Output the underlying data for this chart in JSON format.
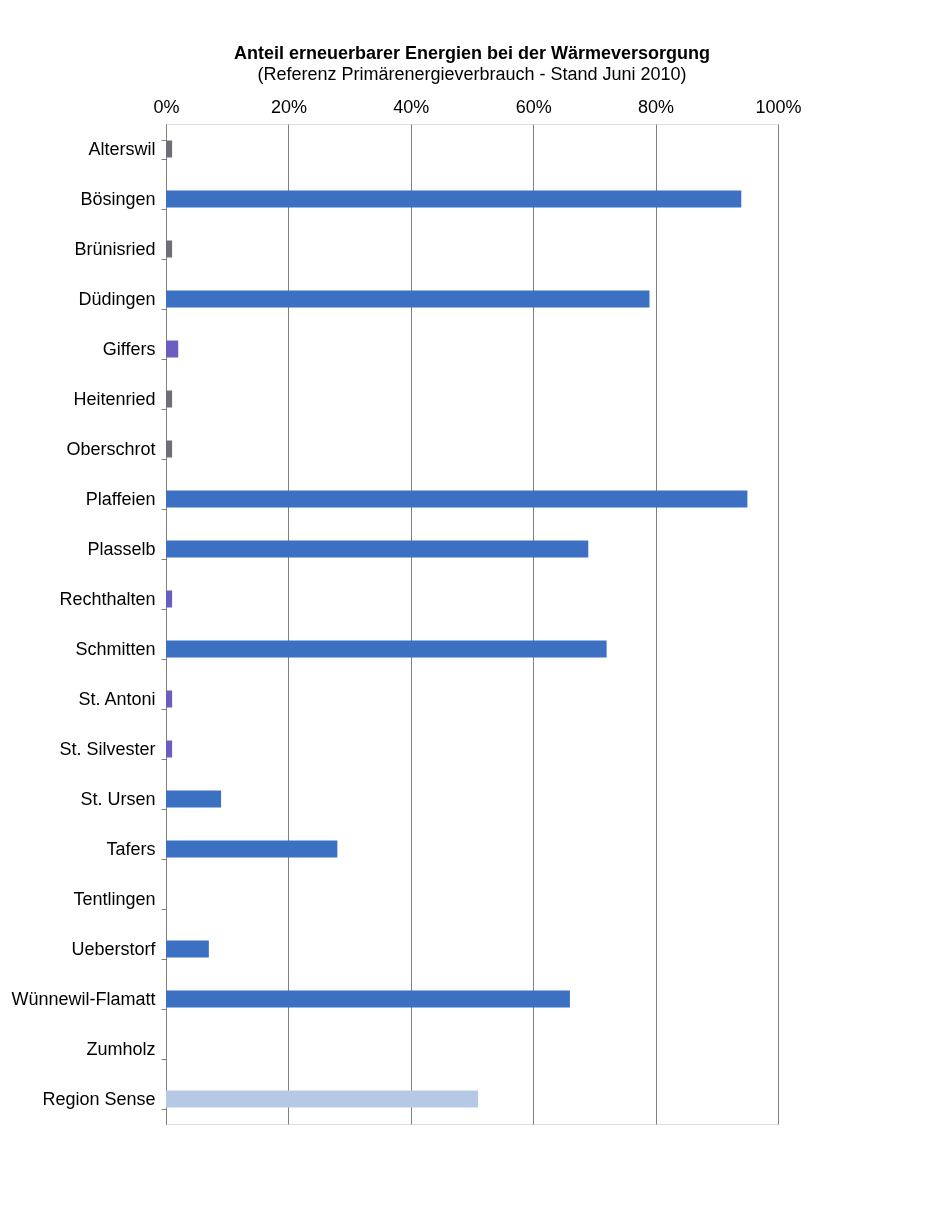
{
  "chart_data": {
    "type": "bar",
    "orientation": "horizontal",
    "title": "Anteil erneuerbarer Energien bei der Wärmeversorgung",
    "subtitle": "(Referenz Primärenergieverbrauch -  Stand Juni 2010)",
    "categories": [
      "Alterswil",
      "Bösingen",
      "Brünisried",
      "Düdingen",
      "Giffers",
      "Heitenried",
      "Oberschrot",
      "Plaffeien",
      "Plasselb",
      "Rechthalten",
      "Schmitten",
      "St. Antoni",
      "St. Silvester",
      "St. Ursen",
      "Tafers",
      "Tentlingen",
      "Ueberstorf",
      "Wünnewil-Flamatt",
      "Zumholz",
      "Region Sense"
    ],
    "values": [
      1,
      94,
      1,
      79,
      2,
      1,
      1,
      95,
      69,
      1,
      72,
      1,
      1,
      9,
      28,
      0,
      7,
      66,
      0,
      51
    ],
    "colors": [
      "#6f6f7a",
      "#3b70c2",
      "#6f6f7a",
      "#3b70c2",
      "#6a5fc0",
      "#6f6f7a",
      "#6f6f7a",
      "#3b70c2",
      "#3b70c2",
      "#6a5fc0",
      "#3b70c2",
      "#6a5fc0",
      "#6a5fc0",
      "#3b70c2",
      "#3b70c2",
      "#3b70c2",
      "#3b70c2",
      "#3b70c2",
      "#3b70c2",
      "#b5c9e6"
    ],
    "xlim": [
      0,
      100
    ],
    "xticks": [
      {
        "value": 0,
        "label": "0%"
      },
      {
        "value": 20,
        "label": "20%"
      },
      {
        "value": 40,
        "label": "40%"
      },
      {
        "value": 60,
        "label": "60%"
      },
      {
        "value": 80,
        "label": "80%"
      },
      {
        "value": 100,
        "label": "100%"
      }
    ],
    "grid": "x"
  }
}
